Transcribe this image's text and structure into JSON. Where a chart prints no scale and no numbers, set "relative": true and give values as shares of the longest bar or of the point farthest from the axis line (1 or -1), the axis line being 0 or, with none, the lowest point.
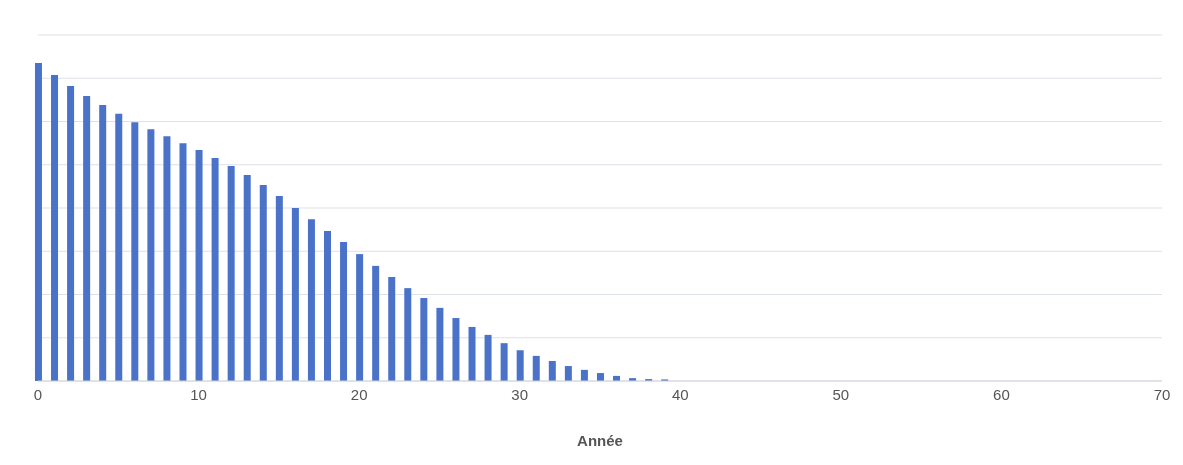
{
  "chart_data": {
    "type": "bar",
    "xlabel": "Année",
    "relative": true,
    "color": "#4a72c8",
    "x": [
      0,
      1,
      2,
      3,
      4,
      5,
      6,
      7,
      8,
      9,
      10,
      11,
      12,
      13,
      14,
      15,
      16,
      17,
      18,
      19,
      20,
      21,
      22,
      23,
      24,
      25,
      26,
      27,
      28,
      29,
      30,
      31,
      32,
      33,
      34,
      35,
      36,
      37,
      38,
      39
    ],
    "values": [
      1,
      0.962,
      0.928,
      0.896,
      0.868,
      0.84,
      0.814,
      0.792,
      0.77,
      0.748,
      0.726,
      0.701,
      0.676,
      0.648,
      0.616,
      0.582,
      0.544,
      0.509,
      0.472,
      0.437,
      0.399,
      0.362,
      0.327,
      0.292,
      0.261,
      0.23,
      0.198,
      0.17,
      0.145,
      0.119,
      0.097,
      0.079,
      0.063,
      0.047,
      0.035,
      0.025,
      0.016,
      0.009,
      0.006,
      0.005
    ],
    "xlim": [
      0,
      70
    ],
    "xticks": [
      0,
      10,
      20,
      30,
      40,
      50,
      60,
      70
    ],
    "grid": "y",
    "legend": false
  }
}
